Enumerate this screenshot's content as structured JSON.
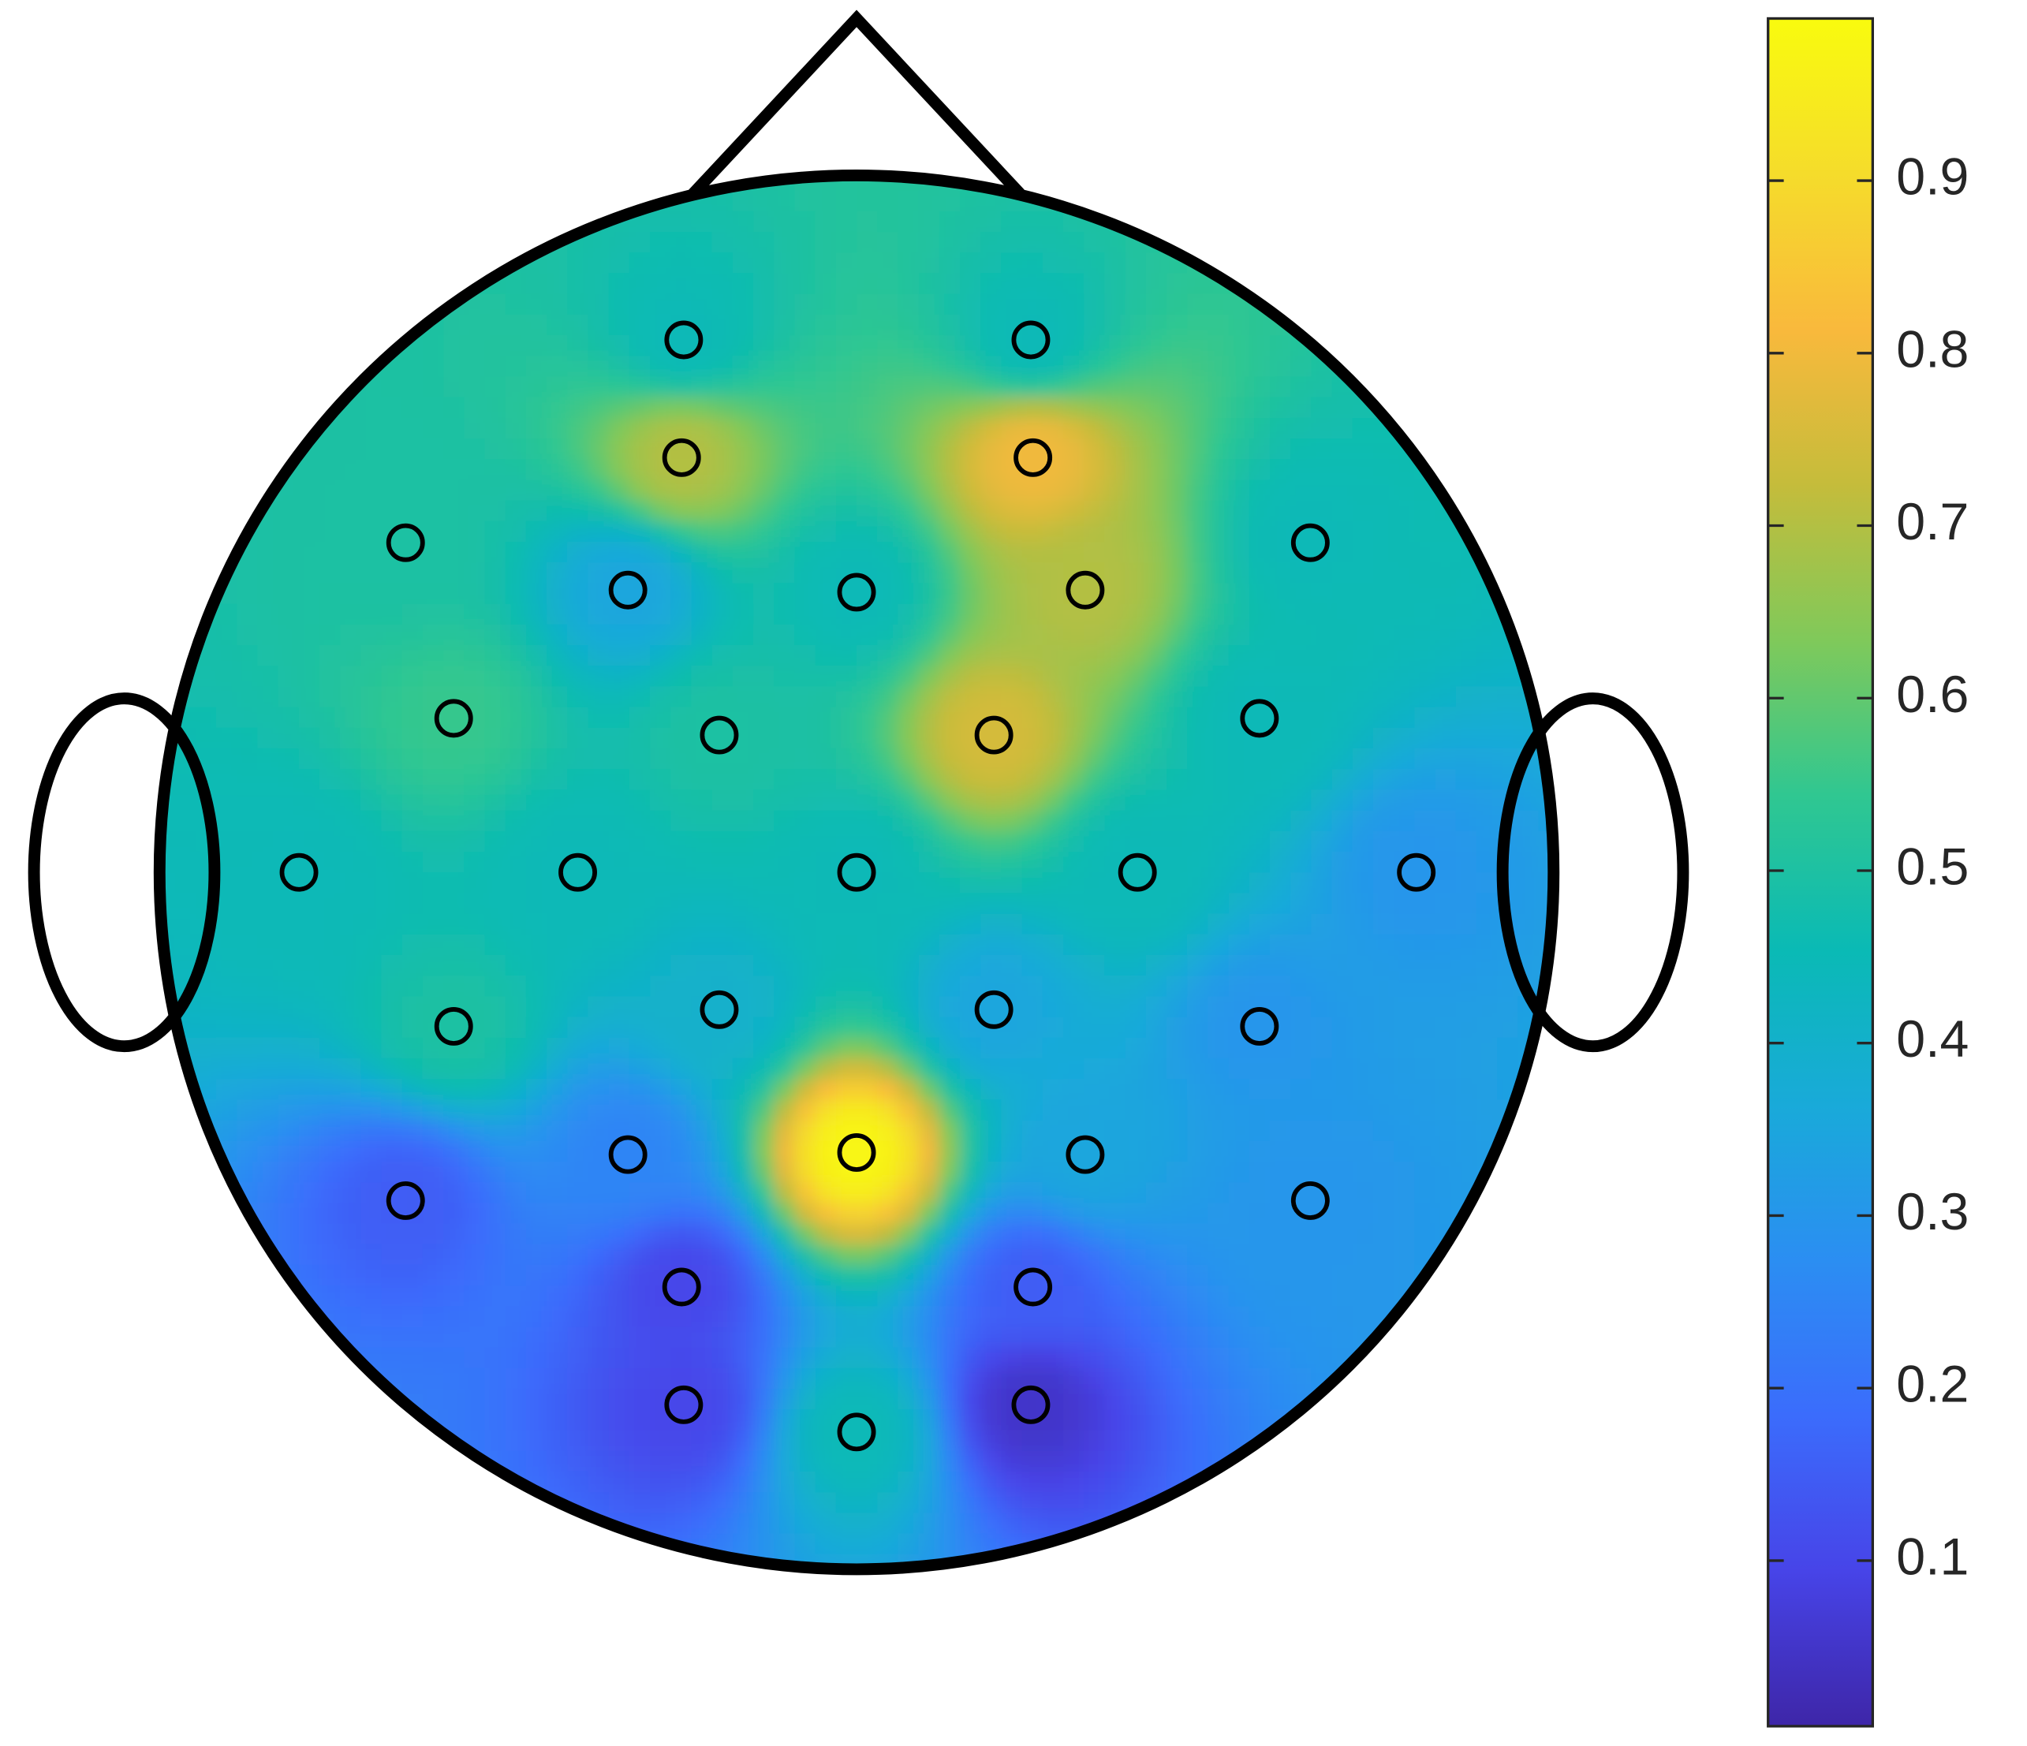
{
  "chart_data": {
    "type": "topoplot",
    "x": [
      -0.248,
      0.25,
      -0.251,
      0.253,
      -0.647,
      -0.328,
      0,
      0.328,
      0.651,
      -0.578,
      -0.197,
      0.197,
      0.578,
      -0.8,
      -0.4,
      0,
      0.403,
      0.803,
      -0.578,
      -0.197,
      0.197,
      0.578,
      -0.328,
      0,
      0.328,
      -0.647,
      0.651,
      -0.251,
      0.253,
      -0.248,
      0.25,
      0
    ],
    "y": [
      0.764,
      0.764,
      0.595,
      0.595,
      0.473,
      0.405,
      0.402,
      0.405,
      0.473,
      0.221,
      0.197,
      0.197,
      0.221,
      0,
      0,
      0,
      0,
      0,
      -0.221,
      -0.197,
      -0.197,
      -0.221,
      -0.405,
      -0.402,
      -0.405,
      -0.471,
      -0.471,
      -0.595,
      -0.595,
      -0.764,
      -0.764,
      -0.803
    ],
    "values": [
      0.45,
      0.45,
      0.7,
      0.8,
      0.5,
      0.35,
      0.45,
      0.7,
      0.45,
      0.55,
      0.5,
      0.75,
      0.45,
      0.45,
      0.45,
      0.45,
      0.45,
      0.3,
      0.5,
      0.4,
      0.35,
      0.3,
      0.25,
      0.98,
      0.35,
      0.15,
      0.3,
      0.1,
      0.15,
      0.1,
      0.05,
      0.45
    ],
    "xlim": [
      -1,
      1
    ],
    "ylim": [
      -1,
      1
    ],
    "clim": [
      0.004,
      0.994
    ],
    "cticks": [
      0.1,
      0.2,
      0.3,
      0.4,
      0.5,
      0.6,
      0.7,
      0.8,
      0.9
    ],
    "colormap": [
      "#3e26a8",
      "#4744e8",
      "#3b6cfc",
      "#2b8ef2",
      "#19aad9",
      "#0abab5",
      "#30c791",
      "#80c95a",
      "#c5bc3b",
      "#f9b93c",
      "#f5dc2b",
      "#f9fb0e"
    ]
  }
}
